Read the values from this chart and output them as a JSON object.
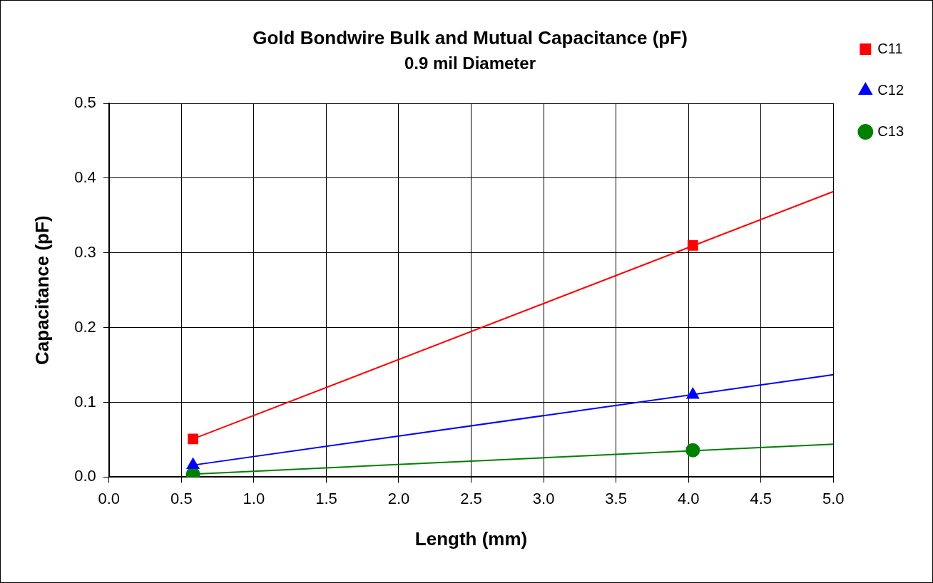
{
  "chart_data": {
    "type": "scatter",
    "title": "Gold Bondwire Bulk and Mutual Capacitance (pF)",
    "subtitle": "0.9 mil Diameter",
    "xlabel": "Length (mm)",
    "ylabel": "Capacitance (pF)",
    "xlim": [
      0,
      5
    ],
    "xticks": [
      {
        "value": 0,
        "label": "0.0"
      },
      {
        "value": 0.5,
        "label": "0.5"
      },
      {
        "value": 1,
        "label": "1.0"
      },
      {
        "value": 1.5,
        "label": "1.5"
      },
      {
        "value": 2,
        "label": "2.0"
      },
      {
        "value": 2.5,
        "label": "2.5"
      },
      {
        "value": 3,
        "label": "3.0"
      },
      {
        "value": 3.5,
        "label": "3.5"
      },
      {
        "value": 4,
        "label": "4.0"
      },
      {
        "value": 4.5,
        "label": "4.5"
      },
      {
        "value": 5,
        "label": "5.0"
      }
    ],
    "ylim": [
      0,
      0.5
    ],
    "yticks": [
      {
        "value": 0,
        "label": "0.0"
      },
      {
        "value": 0.1,
        "label": "0.1"
      },
      {
        "value": 0.2,
        "label": "0.2"
      },
      {
        "value": 0.3,
        "label": "0.3"
      },
      {
        "value": 0.4,
        "label": "0.4"
      },
      {
        "value": 0.5,
        "label": "0.5"
      }
    ],
    "grid": true,
    "legend": "top right",
    "series": [
      {
        "name": "C11",
        "color": "#ff0000",
        "marker": "square",
        "x": [
          0.58,
          4.03
        ],
        "values": [
          0.051,
          0.31
        ]
      },
      {
        "name": "C12",
        "color": "#0000ff",
        "marker": "triangle",
        "x": [
          0.58,
          4.03
        ],
        "values": [
          0.016,
          0.11
        ]
      },
      {
        "name": "C13",
        "color": "#008000",
        "marker": "circle",
        "x": [
          0.58,
          4.03
        ],
        "values": [
          0.004,
          0.036
        ]
      },
      {
        "type": "line",
        "color": "#ff0000",
        "marker": "none",
        "x": [
          0.58,
          5
        ],
        "values": [
          0.051,
          0.382
        ]
      },
      {
        "type": "line",
        "color": "#0000ff",
        "marker": "none",
        "x": [
          0.58,
          5
        ],
        "values": [
          0.016,
          0.137
        ]
      },
      {
        "type": "line",
        "color": "#008000",
        "marker": "none",
        "x": [
          0.58,
          5
        ],
        "values": [
          0.004,
          0.044
        ]
      }
    ]
  }
}
